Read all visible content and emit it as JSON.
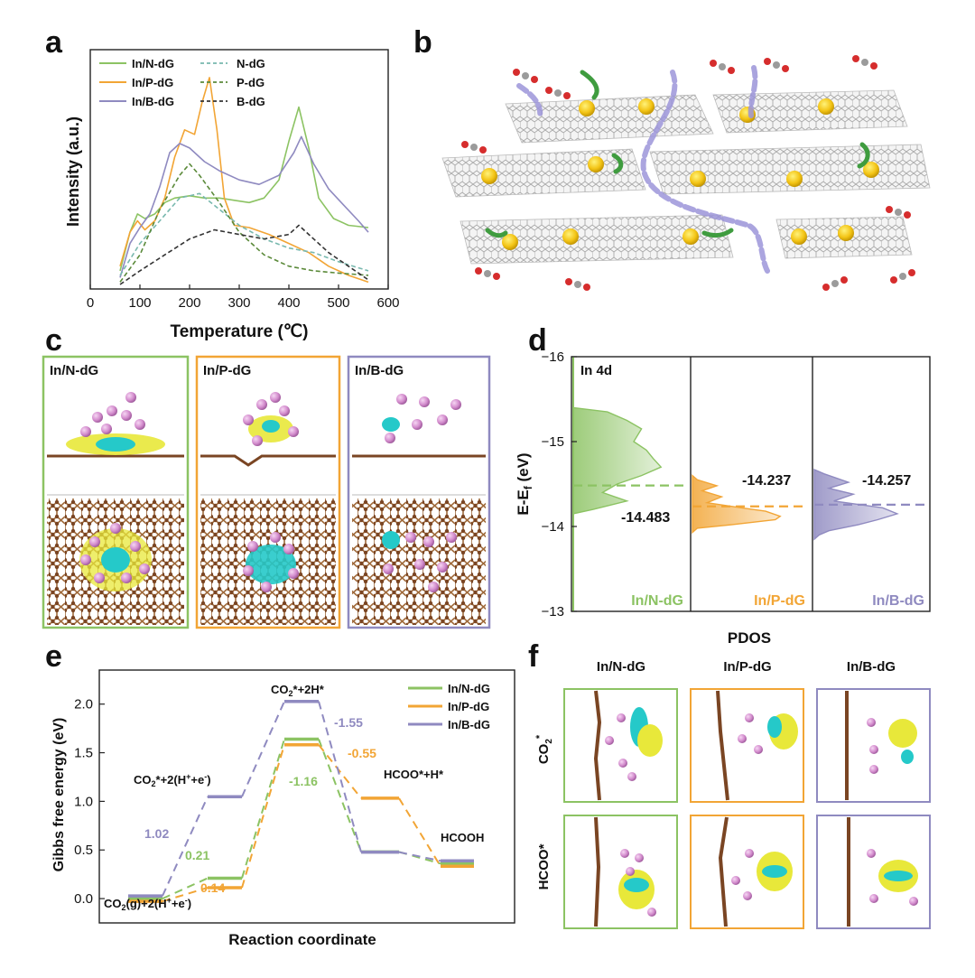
{
  "figure": {
    "panel_letters": [
      "a",
      "b",
      "c",
      "d",
      "e",
      "f"
    ],
    "colors": {
      "green": "#8cc363",
      "orange": "#f2a535",
      "purple": "#8f8ac0",
      "dark": "#222222"
    }
  },
  "panel_a": {
    "ylabel": "Intensity (a.u.)",
    "xlabel": "Temperature (℃)",
    "legend_left": [
      "In/N-dG",
      "In/P-dG",
      "In/B-dG"
    ],
    "legend_right": [
      "N-dG",
      "P-dG",
      "B-dG"
    ]
  },
  "panel_c": {
    "titles": [
      "In/N-dG",
      "In/P-dG",
      "In/B-dG"
    ]
  },
  "panel_d": {
    "ylabel": "E-E",
    "ylabel_sub": "f",
    "ylabel_unit": " (eV)",
    "xlabel": "PDOS",
    "orbital": "In 4d",
    "subplots": [
      {
        "name": "In/N-dG",
        "center_label": "-14.483"
      },
      {
        "name": "In/P-dG",
        "center_label": "-14.237"
      },
      {
        "name": "In/B-dG",
        "center_label": "-14.257"
      }
    ]
  },
  "panel_e": {
    "ylabel": "Gibbs free energy (eV)",
    "xlabel": "Reaction coordinate",
    "legend": [
      "In/N-dG",
      "In/P-dG",
      "In/B-dG"
    ],
    "states": {
      "s0": "CO2(g)+2(H++e-)",
      "s1": "CO2*+2(H++e-)",
      "s2": "CO2*+2H*",
      "s3": "HCOO*+H*",
      "s4": "HCOOH"
    },
    "annotations": {
      "purple_step1": "1.02",
      "green_step1": "0.21",
      "orange_step1": "0.14",
      "purple_step3": "-1.55",
      "orange_step3": "-0.55",
      "green_step3": "-1.16"
    }
  },
  "panel_f": {
    "col_titles": [
      "In/N-dG",
      "In/P-dG",
      "In/B-dG"
    ],
    "row_labels": [
      "CO2*",
      "HCOO*"
    ]
  },
  "chart_data": [
    {
      "type": "line",
      "panel": "a",
      "xlabel": "Temperature (℃)",
      "ylabel": "Intensity (a.u.)",
      "xlim": [
        0,
        600
      ],
      "xticks": [
        0,
        100,
        200,
        300,
        400,
        500,
        600
      ],
      "series": [
        {
          "name": "In/N-dG",
          "style": "solid",
          "color": "#8cc363",
          "x": [
            60,
            80,
            95,
            110,
            130,
            150,
            170,
            200,
            230,
            260,
            290,
            320,
            350,
            380,
            400,
            420,
            440,
            460,
            490,
            520,
            560
          ],
          "y": [
            0.08,
            0.25,
            0.33,
            0.31,
            0.33,
            0.38,
            0.4,
            0.41,
            0.4,
            0.4,
            0.39,
            0.38,
            0.4,
            0.48,
            0.65,
            0.8,
            0.62,
            0.4,
            0.31,
            0.28,
            0.27
          ]
        },
        {
          "name": "In/P-dG",
          "style": "solid",
          "color": "#f2a535",
          "x": [
            60,
            80,
            95,
            110,
            130,
            150,
            170,
            190,
            210,
            225,
            240,
            255,
            270,
            290,
            320,
            360,
            400,
            440,
            480,
            520,
            560
          ],
          "y": [
            0.1,
            0.25,
            0.3,
            0.26,
            0.3,
            0.4,
            0.58,
            0.7,
            0.68,
            0.82,
            0.93,
            0.7,
            0.4,
            0.28,
            0.27,
            0.24,
            0.2,
            0.16,
            0.1,
            0.06,
            0.03
          ]
        },
        {
          "name": "In/B-dG",
          "style": "solid",
          "color": "#8f8ac0",
          "x": [
            60,
            80,
            100,
            120,
            140,
            160,
            180,
            200,
            230,
            260,
            300,
            340,
            380,
            410,
            425,
            450,
            480,
            510,
            540,
            560
          ],
          "y": [
            0.05,
            0.2,
            0.27,
            0.33,
            0.45,
            0.6,
            0.64,
            0.62,
            0.56,
            0.52,
            0.48,
            0.46,
            0.5,
            0.6,
            0.67,
            0.55,
            0.44,
            0.37,
            0.3,
            0.25
          ]
        },
        {
          "name": "N-dG",
          "style": "dashed",
          "color": "#78b8ae",
          "x": [
            60,
            100,
            140,
            180,
            220,
            260,
            300,
            350,
            400,
            450,
            500,
            560
          ],
          "y": [
            0.06,
            0.2,
            0.3,
            0.4,
            0.42,
            0.35,
            0.28,
            0.22,
            0.18,
            0.16,
            0.12,
            0.08
          ]
        },
        {
          "name": "P-dG",
          "style": "dashed",
          "color": "#5b8a3a",
          "x": [
            60,
            100,
            140,
            180,
            200,
            220,
            260,
            300,
            350,
            400,
            450,
            500,
            560
          ],
          "y": [
            0.03,
            0.15,
            0.35,
            0.5,
            0.55,
            0.5,
            0.38,
            0.25,
            0.15,
            0.1,
            0.08,
            0.07,
            0.06
          ]
        },
        {
          "name": "B-dG",
          "style": "dashed",
          "color": "#333333",
          "x": [
            60,
            100,
            150,
            200,
            250,
            300,
            350,
            400,
            420,
            440,
            480,
            520,
            560
          ],
          "y": [
            0.02,
            0.08,
            0.15,
            0.22,
            0.26,
            0.24,
            0.22,
            0.24,
            0.28,
            0.24,
            0.16,
            0.1,
            0.04
          ]
        }
      ]
    },
    {
      "type": "area",
      "panel": "d",
      "ylabel": "E-Ef (eV)",
      "xlabel": "PDOS",
      "ylim": [
        -16,
        -13
      ],
      "yticks": [
        -16,
        -15,
        -14,
        -13
      ],
      "series": [
        {
          "name": "In/N-dG",
          "color": "#8cc363",
          "d_band_center": -14.483,
          "y": [
            -15.35,
            -15.25,
            -15.15,
            -15.0,
            -14.9,
            -14.8,
            -14.7,
            -14.6,
            -14.5,
            -14.4,
            -14.3,
            -14.2
          ],
          "pdos": [
            0.35,
            0.55,
            0.7,
            0.62,
            0.75,
            0.82,
            0.9,
            0.7,
            0.45,
            0.3,
            0.55,
            0.2
          ]
        },
        {
          "name": "In/P-dG",
          "color": "#f2a535",
          "d_band_center": -14.237,
          "y": [
            -14.55,
            -14.48,
            -14.42,
            -14.35,
            -14.28,
            -14.22,
            -14.18,
            -14.12,
            -14.08,
            -14.02,
            -13.98
          ],
          "pdos": [
            0.05,
            0.25,
            0.1,
            0.3,
            0.15,
            0.5,
            0.75,
            0.9,
            0.85,
            0.4,
            0.05
          ]
        },
        {
          "name": "In/B-dG",
          "color": "#8f8ac0",
          "d_band_center": -14.257,
          "y": [
            -14.62,
            -14.52,
            -14.45,
            -14.38,
            -14.3,
            -14.22,
            -14.15,
            -14.08,
            -14.02,
            -13.95,
            -13.9
          ],
          "pdos": [
            0.1,
            0.35,
            0.15,
            0.4,
            0.2,
            0.7,
            0.85,
            0.65,
            0.45,
            0.15,
            0.05
          ]
        }
      ]
    },
    {
      "type": "line",
      "panel": "e",
      "ylabel": "Gibbs free energy (eV)",
      "xlabel": "Reaction coordinate",
      "ylim": [
        -0.25,
        2.35
      ],
      "yticks": [
        0.0,
        0.5,
        1.0,
        1.5,
        2.0
      ],
      "series": [
        {
          "name": "In/N-dG",
          "color": "#8cc363",
          "levels": [
            0.0,
            0.21,
            1.64,
            0.48,
            0.36
          ]
        },
        {
          "name": "In/P-dG",
          "color": "#f2a535",
          "levels": [
            0.0,
            0.14,
            1.61,
            1.06,
            0.36
          ]
        },
        {
          "name": "In/B-dG",
          "color": "#8f8ac0",
          "levels": [
            0.0,
            1.02,
            2.0,
            0.45,
            0.36
          ]
        }
      ]
    }
  ]
}
